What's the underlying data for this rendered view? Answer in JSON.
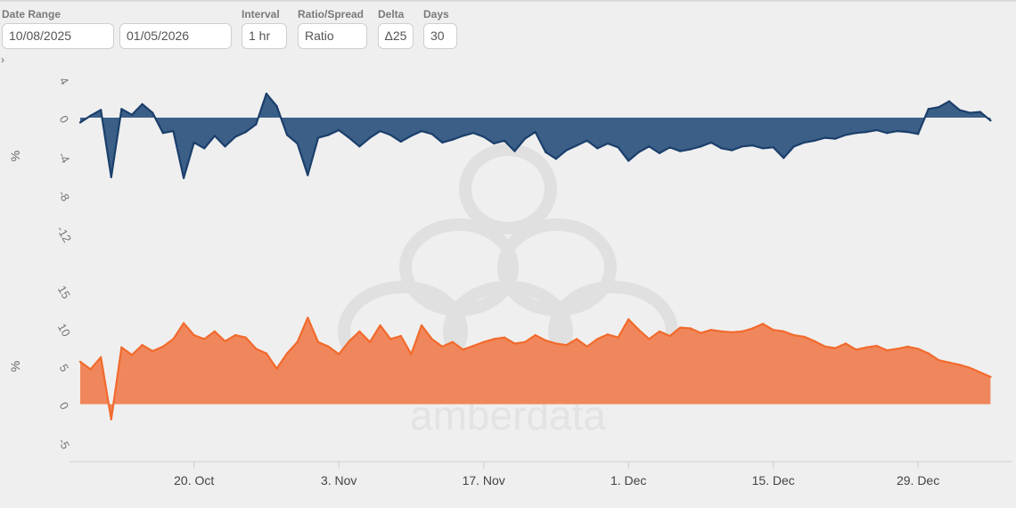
{
  "controls": {
    "date_range_label": "Date Range",
    "start_date": "10/08/2025",
    "end_date": "01/05/2026",
    "interval_label": "Interval",
    "interval_value": "1 hr",
    "ratio_label": "Ratio/Spread",
    "ratio_value": "Ratio",
    "delta_label": "Delta",
    "delta_value": "Δ25",
    "days_label": "Days",
    "days_value": "30"
  },
  "watermark": {
    "text": "amberdata"
  },
  "chart_data": [
    {
      "type": "area",
      "panel": "top",
      "ylabel": "%",
      "ylim": [
        -12,
        4
      ],
      "yticks": [
        4,
        0,
        -4,
        -8,
        -12
      ],
      "x_domain": [
        "2025-10-09",
        "2026-01-06"
      ],
      "grid": false,
      "color": "#1b3f6b",
      "fill": "#3b5f87",
      "series": [
        {
          "points": [
            [
              "2025-10-09",
              -0.5
            ],
            [
              "2025-10-10",
              0.2
            ],
            [
              "2025-10-11",
              0.8
            ],
            [
              "2025-10-12",
              -6.2
            ],
            [
              "2025-10-13",
              0.9
            ],
            [
              "2025-10-14",
              0.3
            ],
            [
              "2025-10-15",
              1.4
            ],
            [
              "2025-10-16",
              0.5
            ],
            [
              "2025-10-17",
              -1.6
            ],
            [
              "2025-10-18",
              -1.4
            ],
            [
              "2025-10-19",
              -6.3
            ],
            [
              "2025-10-20",
              -2.6
            ],
            [
              "2025-10-21",
              -3.2
            ],
            [
              "2025-10-22",
              -1.9
            ],
            [
              "2025-10-23",
              -3.0
            ],
            [
              "2025-10-24",
              -2.0
            ],
            [
              "2025-10-25",
              -1.5
            ],
            [
              "2025-10-26",
              -0.7
            ],
            [
              "2025-10-27",
              2.5
            ],
            [
              "2025-10-28",
              1.2
            ],
            [
              "2025-10-29",
              -1.8
            ],
            [
              "2025-10-30",
              -2.7
            ],
            [
              "2025-10-31",
              -6.0
            ],
            [
              "2025-11-01",
              -2.1
            ],
            [
              "2025-11-02",
              -1.8
            ],
            [
              "2025-11-03",
              -1.3
            ],
            [
              "2025-11-04",
              -2.1
            ],
            [
              "2025-11-05",
              -3.0
            ],
            [
              "2025-11-06",
              -2.1
            ],
            [
              "2025-11-07",
              -1.4
            ],
            [
              "2025-11-08",
              -1.8
            ],
            [
              "2025-11-09",
              -2.5
            ],
            [
              "2025-11-10",
              -1.9
            ],
            [
              "2025-11-11",
              -1.4
            ],
            [
              "2025-11-12",
              -1.7
            ],
            [
              "2025-11-13",
              -2.6
            ],
            [
              "2025-11-14",
              -2.3
            ],
            [
              "2025-11-15",
              -1.9
            ],
            [
              "2025-11-16",
              -1.6
            ],
            [
              "2025-11-17",
              -2.0
            ],
            [
              "2025-11-18",
              -2.7
            ],
            [
              "2025-11-19",
              -2.4
            ],
            [
              "2025-11-20",
              -3.5
            ],
            [
              "2025-11-21",
              -2.2
            ],
            [
              "2025-11-22",
              -1.5
            ],
            [
              "2025-11-23",
              -3.6
            ],
            [
              "2025-11-24",
              -4.3
            ],
            [
              "2025-11-25",
              -3.4
            ],
            [
              "2025-11-26",
              -2.9
            ],
            [
              "2025-11-27",
              -2.4
            ],
            [
              "2025-11-28",
              -3.2
            ],
            [
              "2025-11-29",
              -2.7
            ],
            [
              "2025-11-30",
              -3.1
            ],
            [
              "2025-12-01",
              -4.5
            ],
            [
              "2025-12-02",
              -3.6
            ],
            [
              "2025-12-03",
              -3.0
            ],
            [
              "2025-12-04",
              -3.7
            ],
            [
              "2025-12-05",
              -3.1
            ],
            [
              "2025-12-06",
              -3.5
            ],
            [
              "2025-12-07",
              -3.3
            ],
            [
              "2025-12-08",
              -3.0
            ],
            [
              "2025-12-09",
              -2.6
            ],
            [
              "2025-12-10",
              -3.2
            ],
            [
              "2025-12-11",
              -3.4
            ],
            [
              "2025-12-12",
              -3.0
            ],
            [
              "2025-12-13",
              -2.9
            ],
            [
              "2025-12-14",
              -3.2
            ],
            [
              "2025-12-15",
              -3.1
            ],
            [
              "2025-12-16",
              -4.2
            ],
            [
              "2025-12-17",
              -3.0
            ],
            [
              "2025-12-18",
              -2.6
            ],
            [
              "2025-12-19",
              -2.4
            ],
            [
              "2025-12-20",
              -2.1
            ],
            [
              "2025-12-21",
              -2.2
            ],
            [
              "2025-12-22",
              -1.8
            ],
            [
              "2025-12-23",
              -1.6
            ],
            [
              "2025-12-24",
              -1.5
            ],
            [
              "2025-12-25",
              -1.3
            ],
            [
              "2025-12-26",
              -1.6
            ],
            [
              "2025-12-27",
              -1.4
            ],
            [
              "2025-12-28",
              -1.5
            ],
            [
              "2025-12-29",
              -1.7
            ],
            [
              "2025-12-30",
              0.9
            ],
            [
              "2025-12-31",
              1.1
            ],
            [
              "2026-01-01",
              1.7
            ],
            [
              "2026-01-02",
              0.8
            ],
            [
              "2026-01-03",
              0.5
            ],
            [
              "2026-01-04",
              0.6
            ],
            [
              "2026-01-05",
              -0.3
            ]
          ]
        }
      ]
    },
    {
      "type": "area",
      "panel": "bottom",
      "ylabel": "%",
      "ylim": [
        -5,
        15
      ],
      "yticks": [
        15,
        10,
        5,
        0,
        -5
      ],
      "x_domain": [
        "2025-10-09",
        "2026-01-06"
      ],
      "xticks": [
        "20. Oct",
        "3. Nov",
        "17. Nov",
        "1. Dec",
        "15. Dec",
        "29. Dec"
      ],
      "xtick_dates": [
        "2025-10-20",
        "2025-11-03",
        "2025-11-17",
        "2025-12-01",
        "2025-12-15",
        "2025-12-29"
      ],
      "grid": false,
      "color": "#f26a2c",
      "fill": "#f0875c",
      "series": [
        {
          "points": [
            [
              "2025-10-09",
              5.6
            ],
            [
              "2025-10-10",
              4.6
            ],
            [
              "2025-10-11",
              6.2
            ],
            [
              "2025-10-12",
              -2.0
            ],
            [
              "2025-10-13",
              7.5
            ],
            [
              "2025-10-14",
              6.5
            ],
            [
              "2025-10-15",
              7.8
            ],
            [
              "2025-10-16",
              7.0
            ],
            [
              "2025-10-17",
              7.6
            ],
            [
              "2025-10-18",
              8.6
            ],
            [
              "2025-10-19",
              10.7
            ],
            [
              "2025-10-20",
              9.1
            ],
            [
              "2025-10-21",
              8.6
            ],
            [
              "2025-10-22",
              9.6
            ],
            [
              "2025-10-23",
              8.3
            ],
            [
              "2025-10-24",
              9.1
            ],
            [
              "2025-10-25",
              8.8
            ],
            [
              "2025-10-26",
              7.3
            ],
            [
              "2025-10-27",
              6.7
            ],
            [
              "2025-10-28",
              4.7
            ],
            [
              "2025-10-29",
              6.7
            ],
            [
              "2025-10-30",
              8.2
            ],
            [
              "2025-10-31",
              11.4
            ],
            [
              "2025-11-01",
              8.2
            ],
            [
              "2025-11-02",
              7.6
            ],
            [
              "2025-11-03",
              6.6
            ],
            [
              "2025-11-04",
              8.3
            ],
            [
              "2025-11-05",
              9.6
            ],
            [
              "2025-11-06",
              8.2
            ],
            [
              "2025-11-07",
              10.4
            ],
            [
              "2025-11-08",
              8.6
            ],
            [
              "2025-11-09",
              9.0
            ],
            [
              "2025-11-10",
              6.6
            ],
            [
              "2025-11-11",
              10.4
            ],
            [
              "2025-11-12",
              8.6
            ],
            [
              "2025-11-13",
              7.6
            ],
            [
              "2025-11-14",
              8.2
            ],
            [
              "2025-11-15",
              7.2
            ],
            [
              "2025-11-16",
              7.7
            ],
            [
              "2025-11-17",
              8.2
            ],
            [
              "2025-11-18",
              8.6
            ],
            [
              "2025-11-19",
              8.8
            ],
            [
              "2025-11-20",
              8.0
            ],
            [
              "2025-11-21",
              8.2
            ],
            [
              "2025-11-22",
              9.1
            ],
            [
              "2025-11-23",
              8.4
            ],
            [
              "2025-11-24",
              8.0
            ],
            [
              "2025-11-25",
              7.8
            ],
            [
              "2025-11-26",
              8.6
            ],
            [
              "2025-11-27",
              7.6
            ],
            [
              "2025-11-28",
              8.6
            ],
            [
              "2025-11-29",
              9.2
            ],
            [
              "2025-11-30",
              8.8
            ],
            [
              "2025-12-01",
              11.2
            ],
            [
              "2025-12-02",
              9.8
            ],
            [
              "2025-12-03",
              8.6
            ],
            [
              "2025-12-04",
              9.6
            ],
            [
              "2025-12-05",
              9.0
            ],
            [
              "2025-12-06",
              10.1
            ],
            [
              "2025-12-07",
              10.0
            ],
            [
              "2025-12-08",
              9.4
            ],
            [
              "2025-12-09",
              9.8
            ],
            [
              "2025-12-10",
              9.6
            ],
            [
              "2025-12-11",
              9.5
            ],
            [
              "2025-12-12",
              9.6
            ],
            [
              "2025-12-13",
              10.0
            ],
            [
              "2025-12-14",
              10.6
            ],
            [
              "2025-12-15",
              9.8
            ],
            [
              "2025-12-16",
              9.6
            ],
            [
              "2025-12-17",
              9.1
            ],
            [
              "2025-12-18",
              8.9
            ],
            [
              "2025-12-19",
              8.3
            ],
            [
              "2025-12-20",
              7.6
            ],
            [
              "2025-12-21",
              7.4
            ],
            [
              "2025-12-22",
              8.0
            ],
            [
              "2025-12-23",
              7.2
            ],
            [
              "2025-12-24",
              7.5
            ],
            [
              "2025-12-25",
              7.7
            ],
            [
              "2025-12-26",
              7.1
            ],
            [
              "2025-12-27",
              7.3
            ],
            [
              "2025-12-28",
              7.6
            ],
            [
              "2025-12-29",
              7.3
            ],
            [
              "2025-12-30",
              6.7
            ],
            [
              "2025-12-31",
              5.8
            ],
            [
              "2026-01-01",
              5.5
            ],
            [
              "2026-01-02",
              5.2
            ],
            [
              "2026-01-03",
              4.8
            ],
            [
              "2026-01-04",
              4.2
            ],
            [
              "2026-01-05",
              3.6
            ]
          ]
        }
      ]
    }
  ]
}
